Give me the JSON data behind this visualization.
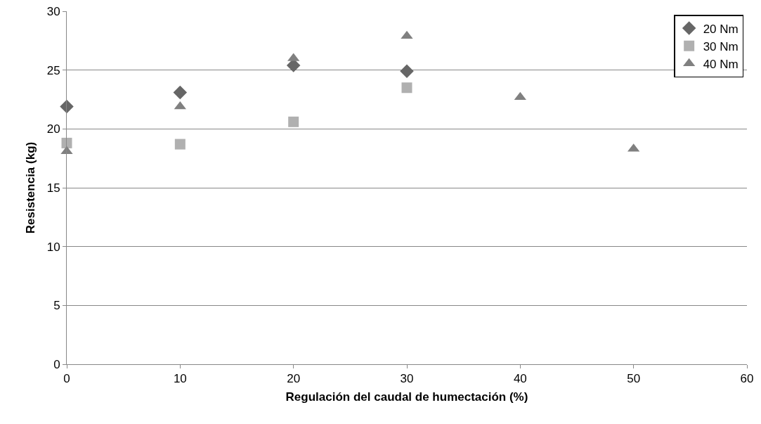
{
  "chart_data": {
    "type": "scatter",
    "xlabel": "Regulación del caudal de humectación (%)",
    "ylabel": "Resistencia (kg)",
    "xlim": [
      0,
      60
    ],
    "xticks": [
      0,
      10,
      20,
      30,
      40,
      50,
      60
    ],
    "ylim": [
      0,
      30
    ],
    "yticks": [
      0,
      5,
      10,
      15,
      20,
      25,
      30
    ],
    "grid": "y",
    "legend": "top right",
    "series": [
      {
        "name": "20 Nm",
        "color": "#666666",
        "marker": "diamond",
        "x": [
          0,
          10,
          20,
          30
        ],
        "values": [
          21.9,
          23.1,
          25.4,
          24.9
        ]
      },
      {
        "name": "30 Nm",
        "color": "#b0b0b0",
        "marker": "square",
        "x": [
          0,
          10,
          20,
          30
        ],
        "values": [
          18.8,
          18.7,
          20.6,
          23.5
        ]
      },
      {
        "name": "40 Nm",
        "color": "#808080",
        "marker": "triangle",
        "x": [
          0,
          10,
          20,
          30,
          40,
          50
        ],
        "values": [
          18.1,
          21.9,
          26.0,
          27.9,
          22.7,
          18.3
        ]
      }
    ]
  }
}
